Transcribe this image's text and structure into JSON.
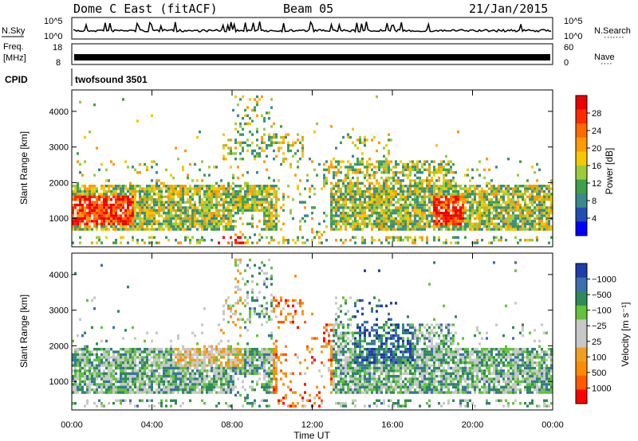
{
  "header": {
    "radar": "Dome C East (fitACF)",
    "beam": "Beam 05",
    "date": "21/Jan/2015"
  },
  "strip_panels": {
    "nsky": {
      "label": "N.Sky",
      "tick_top": "10^5",
      "tick_bottom": "10^0"
    },
    "nsearch": {
      "label": "N.Search",
      "tick_top": "10^5",
      "tick_bottom": "10^0"
    },
    "freq": {
      "label_line1": "Freq.",
      "label_line2": "[MHz]",
      "tick_top": "18",
      "tick_bottom": "8"
    },
    "nave": {
      "label": "Nave",
      "tick_top": "60",
      "tick_bottom": "0"
    },
    "cpid": {
      "label": "CPID",
      "value": "twofsound 3501"
    }
  },
  "colors": {
    "power": [
      "#0000ff",
      "#1f4fb5",
      "#3a8a8a",
      "#3fa14a",
      "#9ccc3c",
      "#f5c800",
      "#ff9a00",
      "#ff6a00",
      "#ff2a00",
      "#ee0000"
    ],
    "velocity": [
      "#ff0000",
      "#ff5a00",
      "#ff8c00",
      "#f0a020",
      "#c8c8c8",
      "#c8c8c8",
      "#63c23c",
      "#2e8b57",
      "#3a6fb0",
      "#1e3caa"
    ]
  },
  "chart_data": [
    {
      "type": "heatmap",
      "panel": "power",
      "ylabel": "Slant Range [km]",
      "yticks": [
        1000,
        2000,
        3000,
        4000
      ],
      "ylim": [
        200,
        4600
      ],
      "xlim": [
        0,
        24
      ],
      "xticks_labels": [
        "00:00",
        "04:00",
        "08:00",
        "12:00",
        "16:00",
        "20:00",
        "00:00"
      ],
      "colorbar": {
        "label": "Power [dB]",
        "ticks": [
          "4",
          "8",
          "12",
          "16",
          "20",
          "24",
          "28"
        ],
        "range": [
          0,
          30
        ]
      }
    },
    {
      "type": "heatmap",
      "panel": "velocity",
      "ylabel": "Slant Range [km]",
      "yticks": [
        1000,
        2000,
        3000,
        4000
      ],
      "ylim": [
        200,
        4600
      ],
      "xlim": [
        0,
        24
      ],
      "xlabel": "Time UT",
      "xticks_labels": [
        "00:00",
        "04:00",
        "08:00",
        "12:00",
        "16:00",
        "20:00",
        "00:00"
      ],
      "colorbar": {
        "label": "Velocity [m s⁻¹]",
        "ticks": [
          "1000",
          "500",
          "100",
          "25",
          "−25",
          "−100",
          "−500",
          "−1000"
        ]
      }
    }
  ]
}
